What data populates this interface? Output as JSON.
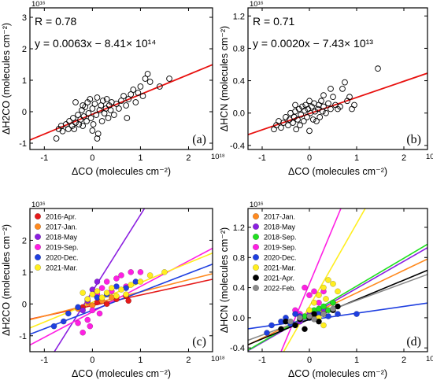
{
  "chart_data": [
    {
      "id": "a",
      "type": "scatter",
      "panel_label": "(a)",
      "xlabel": "ΔCO (molecules cm⁻²)",
      "ylabel": "ΔH2CO (molecules cm⁻²)",
      "x_multiplier": "10¹⁸",
      "y_multiplier": "10¹⁶",
      "xlim": [
        -1.3,
        2.5
      ],
      "ylim": [
        -1.2,
        3.3
      ],
      "xticks": [
        -1,
        0,
        1,
        2
      ],
      "yticks": [
        -1,
        0,
        1,
        2,
        3
      ],
      "xtick_labels": [
        "-1",
        "0",
        "1",
        "2"
      ],
      "ytick_labels": [
        "-1",
        "0",
        "1",
        "2",
        "3"
      ],
      "annotations": [
        "R = 0.78",
        "y = 0.0063x − 8.41× 10¹⁴"
      ],
      "fit": {
        "slope": 0.63,
        "intercept": -0.08,
        "color": "#e8110f"
      },
      "points": [
        [
          -0.75,
          -0.85
        ],
        [
          -0.7,
          -0.55
        ],
        [
          -0.65,
          -0.45
        ],
        [
          -0.62,
          -0.62
        ],
        [
          -0.55,
          -0.4
        ],
        [
          -0.5,
          -0.55
        ],
        [
          -0.48,
          -0.3
        ],
        [
          -0.42,
          -0.45
        ],
        [
          -0.4,
          -0.2
        ],
        [
          -0.38,
          -0.55
        ],
        [
          -0.35,
          -0.35
        ],
        [
          -0.3,
          -0.1
        ],
        [
          -0.28,
          -0.4
        ],
        [
          -0.25,
          -0.25
        ],
        [
          -0.22,
          0.05
        ],
        [
          -0.2,
          -0.45
        ],
        [
          -0.18,
          -0.15
        ],
        [
          -0.15,
          0.15
        ],
        [
          -0.12,
          -0.3
        ],
        [
          -0.1,
          0.3
        ],
        [
          -0.08,
          -0.05
        ],
        [
          -0.05,
          0.4
        ],
        [
          -0.03,
          -0.2
        ],
        [
          0,
          0.1
        ],
        [
          0.02,
          -0.4
        ],
        [
          0.05,
          0.25
        ],
        [
          0.08,
          -0.1
        ],
        [
          0.1,
          0.45
        ],
        [
          0.12,
          -0.7
        ],
        [
          0.15,
          0.05
        ],
        [
          0.18,
          0.2
        ],
        [
          0.2,
          -0.3
        ],
        [
          0.22,
          0.35
        ],
        [
          0.25,
          -0.05
        ],
        [
          0.28,
          0.1
        ],
        [
          0.3,
          0.4
        ],
        [
          0.33,
          -0.2
        ],
        [
          0.35,
          0.2
        ],
        [
          0.38,
          0.05
        ],
        [
          0.4,
          0.3
        ],
        [
          0.45,
          -0.1
        ],
        [
          0.5,
          0.25
        ],
        [
          0.55,
          0.1
        ],
        [
          0.6,
          0.35
        ],
        [
          0.65,
          0.5
        ],
        [
          0.7,
          0.2
        ],
        [
          0.72,
          -0.2
        ],
        [
          0.75,
          0.4
        ],
        [
          0.8,
          0.55
        ],
        [
          0.85,
          0.7
        ],
        [
          0.9,
          0.3
        ],
        [
          0.95,
          0.6
        ],
        [
          1.0,
          0.8
        ],
        [
          1.05,
          0.5
        ],
        [
          1.1,
          1.05
        ],
        [
          1.15,
          1.2
        ],
        [
          1.2,
          0.95
        ],
        [
          1.4,
          0.8
        ],
        [
          1.6,
          1.05
        ],
        [
          -0.35,
          0.3
        ],
        [
          -0.2,
          0.2
        ],
        [
          0.0,
          -0.6
        ],
        [
          0.1,
          -0.85
        ]
      ]
    },
    {
      "id": "b",
      "type": "scatter",
      "panel_label": "(b)",
      "xlabel": "ΔCO (molecules cm⁻²)",
      "ylabel": "ΔHCN (molecules cm⁻²)",
      "x_multiplier": "10¹⁸",
      "y_multiplier": "10¹⁶",
      "xlim": [
        -1.3,
        2.5
      ],
      "ylim": [
        -0.45,
        1.3
      ],
      "xticks": [
        -1,
        0,
        1,
        2
      ],
      "yticks": [
        -0.4,
        0.0,
        0.4,
        0.8,
        1.2
      ],
      "xtick_labels": [
        "-1",
        "0",
        "1",
        "2"
      ],
      "ytick_labels": [
        "-0.4",
        "0.0",
        "0.4",
        "0.8",
        "1.2"
      ],
      "annotations": [
        "R = 0.71",
        "y = 0.0020x − 7.43× 10¹³"
      ],
      "fit": {
        "slope": 0.2,
        "intercept": -0.007,
        "color": "#e8110f"
      },
      "points": [
        [
          -0.75,
          -0.2
        ],
        [
          -0.7,
          -0.15
        ],
        [
          -0.65,
          -0.1
        ],
        [
          -0.6,
          -0.18
        ],
        [
          -0.55,
          -0.12
        ],
        [
          -0.5,
          -0.05
        ],
        [
          -0.45,
          -0.15
        ],
        [
          -0.42,
          -0.08
        ],
        [
          -0.4,
          0.0
        ],
        [
          -0.35,
          -0.12
        ],
        [
          -0.32,
          -0.05
        ],
        [
          -0.3,
          0.02
        ],
        [
          -0.28,
          -0.2
        ],
        [
          -0.25,
          -0.08
        ],
        [
          -0.22,
          0.05
        ],
        [
          -0.2,
          -0.15
        ],
        [
          -0.18,
          -0.02
        ],
        [
          -0.15,
          0.08
        ],
        [
          -0.12,
          -0.1
        ],
        [
          -0.1,
          0.03
        ],
        [
          -0.08,
          0.1
        ],
        [
          -0.05,
          -0.05
        ],
        [
          -0.03,
          0.05
        ],
        [
          0,
          -0.22
        ],
        [
          0.02,
          0.0
        ],
        [
          0.05,
          0.08
        ],
        [
          0.08,
          -0.08
        ],
        [
          0.1,
          0.12
        ],
        [
          0.12,
          0.02
        ],
        [
          0.15,
          -0.1
        ],
        [
          0.18,
          0.05
        ],
        [
          0.2,
          0.1
        ],
        [
          0.22,
          -0.05
        ],
        [
          0.25,
          0.15
        ],
        [
          0.28,
          0.02
        ],
        [
          0.3,
          0.08
        ],
        [
          0.35,
          0.0
        ],
        [
          0.4,
          0.12
        ],
        [
          0.45,
          0.05
        ],
        [
          0.5,
          0.2
        ],
        [
          0.55,
          0.1
        ],
        [
          0.6,
          0.05
        ],
        [
          0.65,
          0.08
        ],
        [
          0.7,
          0.3
        ],
        [
          0.75,
          0.38
        ],
        [
          0.8,
          0.15
        ],
        [
          0.85,
          0.2
        ],
        [
          0.9,
          0.05
        ],
        [
          0.95,
          0.1
        ],
        [
          1.45,
          0.55
        ],
        [
          -0.3,
          0.1
        ],
        [
          0.0,
          0.15
        ],
        [
          0.3,
          0.22
        ],
        [
          0.45,
          0.3
        ]
      ]
    },
    {
      "id": "c",
      "type": "scatter",
      "panel_label": "(c)",
      "xlabel": "ΔCO (molecules cm⁻²)",
      "ylabel": "ΔH2CO (molecules cm⁻²)",
      "x_multiplier": "10¹⁸",
      "y_multiplier": "10¹⁶",
      "xlim": [
        -1.3,
        2.5
      ],
      "ylim": [
        -1.5,
        3.0
      ],
      "xticks": [
        -1,
        0,
        1,
        2
      ],
      "yticks": [
        -1,
        0,
        1,
        2
      ],
      "xtick_labels": [
        "-1",
        "0",
        "1",
        "2"
      ],
      "ytick_labels": [
        "-1",
        "0",
        "1",
        "2"
      ],
      "legend_position": "top-left",
      "series": [
        {
          "name": "2016-Apr.",
          "color": "#e51a1a",
          "slope": 0.33,
          "intercept": -0.05,
          "points": [
            [
              0.5,
              0.15
            ],
            [
              0.7,
              0.25
            ],
            [
              0.75,
              0.1
            ],
            [
              0.3,
              0.0
            ],
            [
              -0.2,
              -0.1
            ],
            [
              0.1,
              0.05
            ]
          ]
        },
        {
          "name": "2017-Jan.",
          "color": "#ff8a1f",
          "slope": 0.38,
          "intercept": 0.0,
          "points": [
            [
              -0.3,
              -0.15
            ],
            [
              -0.1,
              0.05
            ],
            [
              0.2,
              0.1
            ],
            [
              0.4,
              0.2
            ],
            [
              0.0,
              -0.05
            ]
          ]
        },
        {
          "name": "2018-May",
          "color": "#8b1fe0",
          "slope": 2.4,
          "intercept": 0.4,
          "points": [
            [
              -0.1,
              0.1
            ],
            [
              0.0,
              0.45
            ],
            [
              0.1,
              0.7
            ],
            [
              -0.2,
              -0.2
            ],
            [
              0.05,
              0.3
            ]
          ]
        },
        {
          "name": "2019-Sep.",
          "color": "#ff1fe3",
          "slope": 0.8,
          "intercept": -0.25,
          "points": [
            [
              -0.2,
              -0.9
            ],
            [
              -0.1,
              -0.5
            ],
            [
              -0.05,
              -0.7
            ],
            [
              0.0,
              -0.2
            ],
            [
              0.1,
              0.3
            ],
            [
              0.2,
              0.5
            ],
            [
              0.3,
              0.7
            ],
            [
              0.5,
              0.8
            ],
            [
              0.6,
              0.9
            ],
            [
              0.8,
              1.0
            ],
            [
              -0.3,
              -0.6
            ],
            [
              0.15,
              -0.3
            ],
            [
              0.4,
              0.4
            ],
            [
              0.7,
              0.55
            ],
            [
              1.0,
              1.0
            ]
          ]
        },
        {
          "name": "2020-Dec.",
          "color": "#1f3fe0",
          "slope": 0.58,
          "intercept": -0.2,
          "points": [
            [
              -0.8,
              -0.7
            ],
            [
              -0.6,
              -0.55
            ],
            [
              -0.5,
              -0.3
            ],
            [
              -0.3,
              -0.1
            ],
            [
              -0.1,
              0.15
            ],
            [
              0.1,
              0.2
            ],
            [
              0.3,
              0.3
            ],
            [
              0.5,
              0.55
            ],
            [
              0.7,
              0.5
            ],
            [
              0.9,
              0.7
            ]
          ]
        },
        {
          "name": "2021-Mar.",
          "color": "#ffee1f",
          "slope": 0.62,
          "intercept": 0.05,
          "points": [
            [
              -0.1,
              0.15
            ],
            [
              0.0,
              0.3
            ],
            [
              0.1,
              0.4
            ],
            [
              0.2,
              0.2
            ],
            [
              0.3,
              0.35
            ],
            [
              0.4,
              0.5
            ],
            [
              0.5,
              0.25
            ],
            [
              0.6,
              0.45
            ],
            [
              0.8,
              0.6
            ],
            [
              1.0,
              0.7
            ],
            [
              1.2,
              0.9
            ],
            [
              1.5,
              1.0
            ],
            [
              0.7,
              0.3
            ],
            [
              -0.2,
              0.35
            ]
          ]
        }
      ]
    },
    {
      "id": "d",
      "type": "scatter",
      "panel_label": "(d)",
      "xlabel": "ΔCO (molecules cm⁻²)",
      "ylabel": "ΔHCN (molecules cm⁻²)",
      "x_multiplier": "10¹⁸",
      "y_multiplier": "10¹⁶",
      "xlim": [
        -1.3,
        2.5
      ],
      "ylim": [
        -0.45,
        1.45
      ],
      "xticks": [
        -1,
        0,
        1,
        2
      ],
      "yticks": [
        -0.4,
        0.0,
        0.4,
        0.8,
        1.2
      ],
      "xtick_labels": [
        "-1",
        "0",
        "1",
        "2"
      ],
      "ytick_labels": [
        "-0.4",
        "0.0",
        "0.4",
        "0.8",
        "1.2"
      ],
      "legend_position": "top-left",
      "series": [
        {
          "name": "2017-Jan.",
          "color": "#ff8a1f",
          "slope": 0.3,
          "intercept": 0.03,
          "points": [
            [
              0.3,
              0.1
            ],
            [
              0.5,
              0.2
            ],
            [
              0.1,
              0.0
            ]
          ]
        },
        {
          "name": "2018-May",
          "color": "#8b1fe0",
          "slope": 0.36,
          "intercept": 0.03,
          "points": [
            [
              -0.2,
              -0.05
            ],
            [
              0.0,
              0.05
            ],
            [
              0.3,
              0.12
            ]
          ]
        },
        {
          "name": "2018-Sep.",
          "color": "#1fe01f",
          "slope": 0.37,
          "intercept": 0.05,
          "points": [
            [
              -0.1,
              0.02
            ],
            [
              0.1,
              0.1
            ],
            [
              0.2,
              0.12
            ],
            [
              0.3,
              0.15
            ],
            [
              0.5,
              0.2
            ],
            [
              0.4,
              0.1
            ]
          ]
        },
        {
          "name": "2019-Sep.",
          "color": "#ff1fe3",
          "slope": 1.5,
          "intercept": 0.45,
          "points": [
            [
              -0.3,
              0.1
            ],
            [
              -0.2,
              0.05
            ],
            [
              0.0,
              0.3
            ],
            [
              0.1,
              0.35
            ],
            [
              0.2,
              0.2
            ],
            [
              -0.1,
              0.4
            ],
            [
              0.3,
              0.35
            ]
          ]
        },
        {
          "name": "2020-Dec.",
          "color": "#1f3fe0",
          "slope": 0.09,
          "intercept": -0.03,
          "points": [
            [
              -0.8,
              -0.1
            ],
            [
              -0.6,
              -0.05
            ],
            [
              -0.5,
              0.0
            ],
            [
              -0.4,
              -0.08
            ],
            [
              -0.2,
              0.02
            ],
            [
              0.0,
              0.0
            ],
            [
              0.2,
              0.05
            ],
            [
              0.4,
              0.02
            ],
            [
              0.6,
              0.05
            ],
            [
              1.0,
              0.05
            ],
            [
              -0.9,
              -0.2
            ],
            [
              -0.3,
              0.05
            ]
          ]
        },
        {
          "name": "2021-Mar.",
          "color": "#ffee1f",
          "slope": 1.1,
          "intercept": 0.15,
          "points": [
            [
              0.0,
              0.1
            ],
            [
              0.2,
              0.3
            ],
            [
              0.3,
              0.4
            ],
            [
              0.4,
              0.5
            ],
            [
              0.5,
              0.45
            ],
            [
              0.1,
              0.2
            ],
            [
              0.35,
              0.25
            ],
            [
              0.2,
              0.0
            ],
            [
              0.3,
              -0.1
            ],
            [
              0.6,
              0.35
            ]
          ]
        },
        {
          "name": "2021-Apr.",
          "color": "#000000",
          "slope": 0.26,
          "intercept": -0.02,
          "points": [
            [
              -0.6,
              -0.15
            ],
            [
              -0.5,
              -0.05
            ],
            [
              -0.3,
              -0.1
            ],
            [
              -0.2,
              -0.02
            ],
            [
              0.0,
              0.0
            ],
            [
              0.1,
              0.05
            ],
            [
              0.2,
              -0.05
            ],
            [
              0.3,
              0.05
            ],
            [
              0.5,
              0.1
            ],
            [
              0.6,
              0.15
            ],
            [
              -0.1,
              -0.15
            ]
          ]
        },
        {
          "name": "2022-Feb.",
          "color": "#8a8a8a",
          "slope": 0.23,
          "intercept": 0.0,
          "points": [
            [
              -0.4,
              -0.05
            ],
            [
              -0.2,
              0.0
            ],
            [
              0.0,
              0.02
            ],
            [
              0.1,
              -0.02
            ],
            [
              0.3,
              0.05
            ],
            [
              0.5,
              0.12
            ]
          ]
        }
      ]
    }
  ]
}
